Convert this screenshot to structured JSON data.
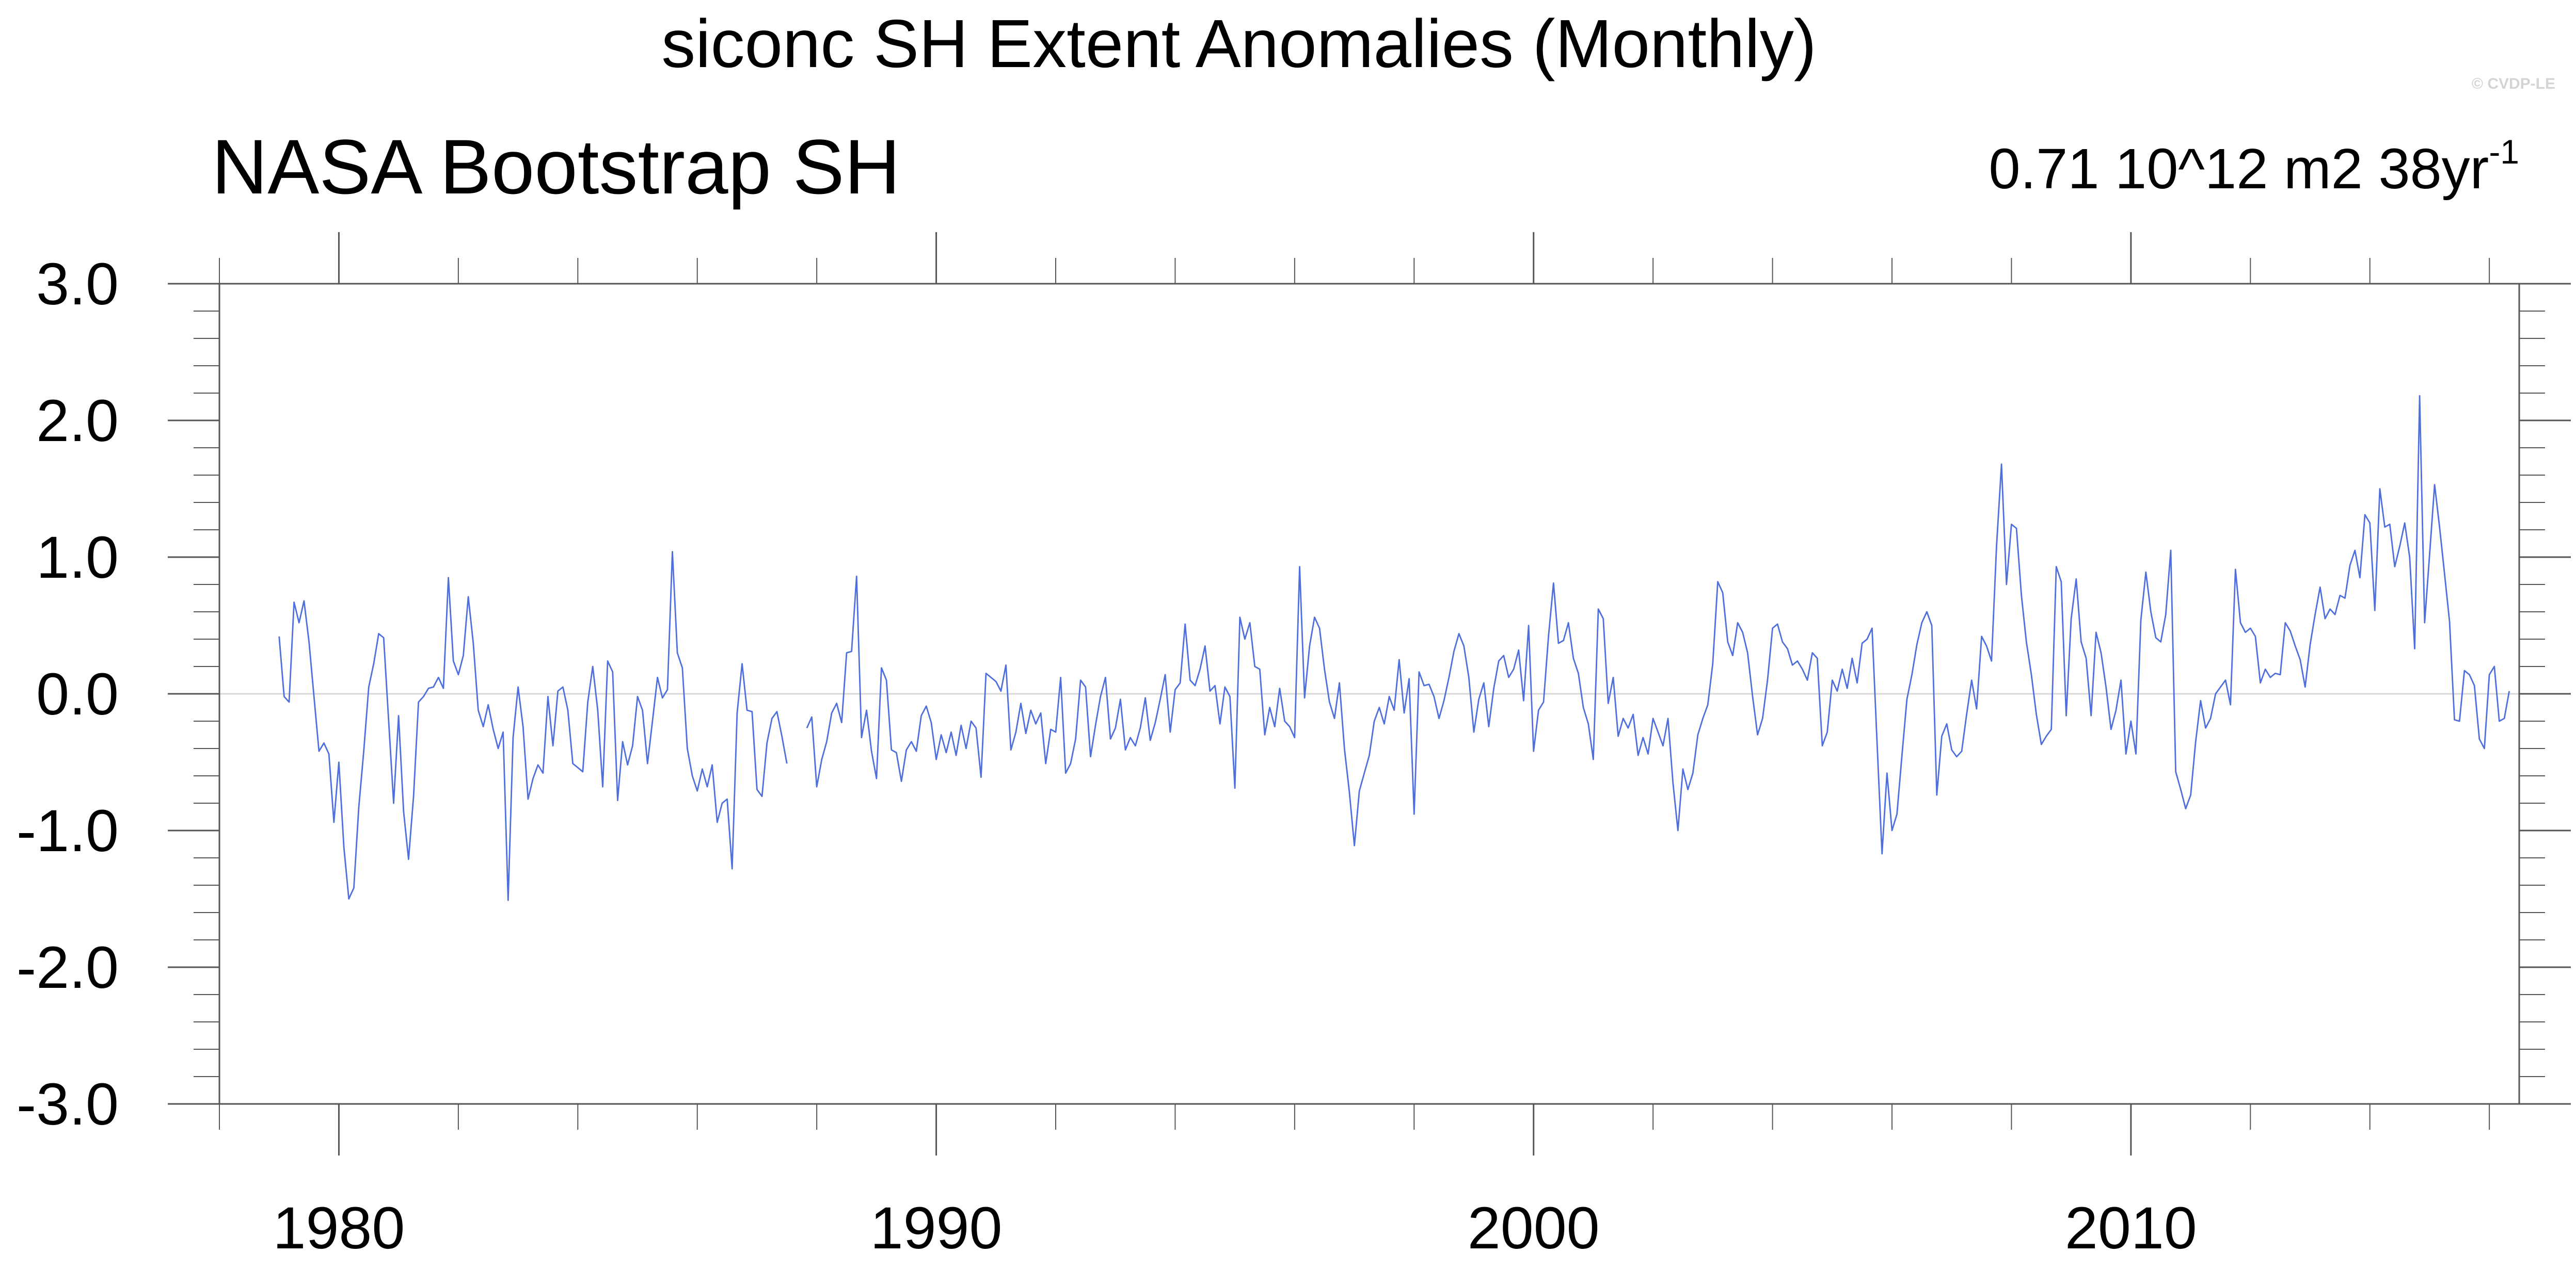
{
  "title": "siconc SH Extent Anomalies (Monthly)",
  "subtitle_left": "NASA Bootstrap SH",
  "subtitle_right": {
    "text": "0.71 10^12 m2 38yr",
    "superscript": "-1"
  },
  "copyright": "© CVDP-LE",
  "colors": {
    "series": "#4f6fdc",
    "zero_line": "#d8d8d8",
    "axis": "#555555"
  },
  "chart_data": {
    "type": "line",
    "title": "siconc SH Extent Anomalies (Monthly)",
    "xlabel": "",
    "ylabel": "",
    "xlim": [
      1978.0,
      2016.5
    ],
    "ylim": [
      -3.0,
      3.0
    ],
    "x_ticks": [
      1980,
      1990,
      2000,
      2010
    ],
    "x_tick_labels": [
      "1980",
      "1990",
      "2000",
      "2010"
    ],
    "y_ticks": [
      -3.0,
      -2.0,
      -1.0,
      0.0,
      1.0,
      2.0,
      3.0
    ],
    "y_tick_labels": [
      "-3.0",
      "-2.0",
      "-1.0",
      "0.0",
      "1.0",
      "2.0",
      "3.0"
    ],
    "grid": false,
    "zero_reference_line": true,
    "series": [
      {
        "x_start": 1979.0,
        "x_step": 0.083333,
        "values": [
          0.42,
          -0.02,
          -0.06,
          0.67,
          0.52,
          0.68,
          0.38,
          -0.02,
          -0.42,
          -0.36,
          -0.44,
          -0.94,
          -0.5,
          -1.12,
          -1.5,
          -1.42,
          -0.83,
          -0.42,
          0.05,
          0.22,
          0.44,
          0.41,
          -0.2,
          -0.8,
          -0.16,
          -0.86,
          -1.21,
          -0.75,
          -0.06,
          -0.02,
          0.04,
          0.05,
          0.12,
          0.04,
          0.85,
          0.24,
          0.14,
          0.28,
          0.71,
          0.37,
          -0.12,
          -0.24,
          -0.08,
          -0.26,
          -0.4,
          -0.28,
          -1.51,
          -0.32,
          0.05,
          -0.24,
          -0.77,
          -0.62,
          -0.52,
          -0.58,
          -0.02,
          -0.38,
          0.02,
          0.05,
          -0.12,
          -0.51,
          -0.54,
          -0.57,
          -0.06,
          0.2,
          -0.12,
          -0.68,
          0.24,
          0.16,
          -0.78,
          -0.35,
          -0.52,
          -0.38,
          -0.02,
          -0.12,
          -0.51,
          -0.2,
          0.12,
          -0.03,
          0.03,
          1.04,
          0.3,
          0.19,
          -0.4,
          -0.6,
          -0.71,
          -0.55,
          -0.68,
          -0.52,
          -0.94,
          -0.8,
          -0.77,
          -1.28,
          -0.14,
          0.22,
          -0.12,
          -0.13,
          -0.7,
          -0.75,
          -0.36,
          -0.18,
          -0.13,
          -0.31,
          -0.51,
          null,
          null,
          null,
          -0.25,
          -0.17,
          -0.68,
          -0.48,
          -0.35,
          -0.14,
          -0.07,
          -0.21,
          0.3,
          0.31,
          0.86,
          -0.32,
          -0.12,
          -0.42,
          -0.62,
          0.19,
          0.1,
          -0.41,
          -0.43,
          -0.64,
          -0.41,
          -0.35,
          -0.42,
          -0.16,
          -0.09,
          -0.21,
          -0.48,
          -0.3,
          -0.43,
          -0.28,
          -0.45,
          -0.23,
          -0.4,
          -0.2,
          -0.25,
          -0.61,
          0.15,
          0.12,
          0.09,
          0.02,
          0.21,
          -0.41,
          -0.28,
          -0.07,
          -0.29,
          -0.12,
          -0.22,
          -0.14,
          -0.51,
          -0.26,
          -0.28,
          0.12,
          -0.58,
          -0.51,
          -0.33,
          0.1,
          0.05,
          -0.46,
          -0.23,
          -0.02,
          0.12,
          -0.33,
          -0.25,
          -0.04,
          -0.41,
          -0.32,
          -0.38,
          -0.25,
          -0.03,
          -0.34,
          -0.21,
          -0.04,
          0.14,
          -0.28,
          0.03,
          0.08,
          0.51,
          0.1,
          0.06,
          0.18,
          0.35,
          0.02,
          0.06,
          -0.22,
          0.05,
          -0.02,
          -0.69,
          0.56,
          0.4,
          0.52,
          0.2,
          0.18,
          -0.3,
          -0.1,
          -0.24,
          0.04,
          -0.2,
          -0.24,
          -0.32,
          0.93,
          -0.03,
          0.35,
          0.56,
          0.48,
          0.18,
          -0.06,
          -0.18,
          0.08,
          -0.4,
          -0.72,
          -1.11,
          -0.71,
          -0.58,
          -0.45,
          -0.2,
          -0.1,
          -0.22,
          -0.02,
          -0.12,
          0.25,
          -0.14,
          0.11,
          -0.88,
          0.16,
          0.06,
          0.07,
          -0.02,
          -0.18,
          -0.05,
          0.12,
          0.31,
          0.44,
          0.35,
          0.12,
          -0.28,
          -0.04,
          0.08,
          -0.24,
          0.04,
          0.24,
          0.28,
          0.12,
          0.18,
          0.32,
          -0.05,
          0.5,
          -0.42,
          -0.12,
          -0.06,
          0.42,
          0.81,
          0.37,
          0.39,
          0.52,
          0.26,
          0.15,
          -0.1,
          -0.22,
          -0.48,
          0.62,
          0.55,
          -0.07,
          0.12,
          -0.31,
          -0.18,
          -0.25,
          -0.15,
          -0.45,
          -0.32,
          -0.44,
          -0.18,
          -0.28,
          -0.38,
          -0.18,
          -0.65,
          -1.0,
          -0.55,
          -0.7,
          -0.58,
          -0.3,
          -0.18,
          -0.08,
          0.22,
          0.82,
          0.74,
          0.38,
          0.28,
          0.52,
          0.45,
          0.3,
          -0.02,
          -0.3,
          -0.18,
          0.1,
          0.48,
          0.51,
          0.38,
          0.33,
          0.21,
          0.24,
          0.18,
          0.1,
          0.3,
          0.26,
          -0.38,
          -0.28,
          0.1,
          0.02,
          0.18,
          0.04,
          0.26,
          0.08,
          0.37,
          0.4,
          0.48,
          -0.36,
          -1.17,
          -0.58,
          -1.0,
          -0.88,
          -0.45,
          -0.04,
          0.14,
          0.36,
          0.52,
          0.6,
          0.5,
          -0.74,
          -0.31,
          -0.22,
          -0.41,
          -0.46,
          -0.42,
          -0.15,
          0.1,
          -0.11,
          0.42,
          0.35,
          0.24,
          1.08,
          1.68,
          0.8,
          1.24,
          1.21,
          0.72,
          0.38,
          0.14,
          -0.15,
          -0.37,
          -0.31,
          -0.26,
          0.93,
          0.82,
          -0.16,
          0.55,
          0.84,
          0.38,
          0.26,
          -0.16,
          0.45,
          0.3,
          0.05,
          -0.26,
          -0.12,
          0.1,
          -0.44,
          -0.2,
          -0.44,
          0.54,
          0.89,
          0.6,
          0.41,
          0.38,
          0.58,
          1.05,
          -0.57,
          -0.7,
          -0.84,
          -0.74,
          -0.35,
          -0.05,
          -0.25,
          -0.18,
          0.0,
          0.05,
          0.1,
          -0.08,
          0.91,
          0.52,
          0.45,
          0.48,
          0.42,
          0.08,
          0.18,
          0.12,
          0.15,
          0.14,
          0.52,
          0.46,
          0.35,
          0.25,
          0.05,
          0.36,
          0.58,
          0.78,
          0.55,
          0.62,
          0.58,
          0.72,
          0.7,
          0.94,
          1.05,
          0.85,
          1.31,
          1.25,
          0.61,
          1.5,
          1.22,
          1.24,
          0.93,
          1.08,
          1.25,
          1.0,
          0.33,
          2.18,
          0.52,
          1.02,
          1.53,
          1.22,
          0.88,
          0.53,
          -0.19,
          -0.2,
          0.17,
          0.14,
          0.06,
          -0.33,
          -0.4,
          0.14,
          0.2,
          -0.2,
          -0.18,
          0.02
        ]
      }
    ]
  }
}
